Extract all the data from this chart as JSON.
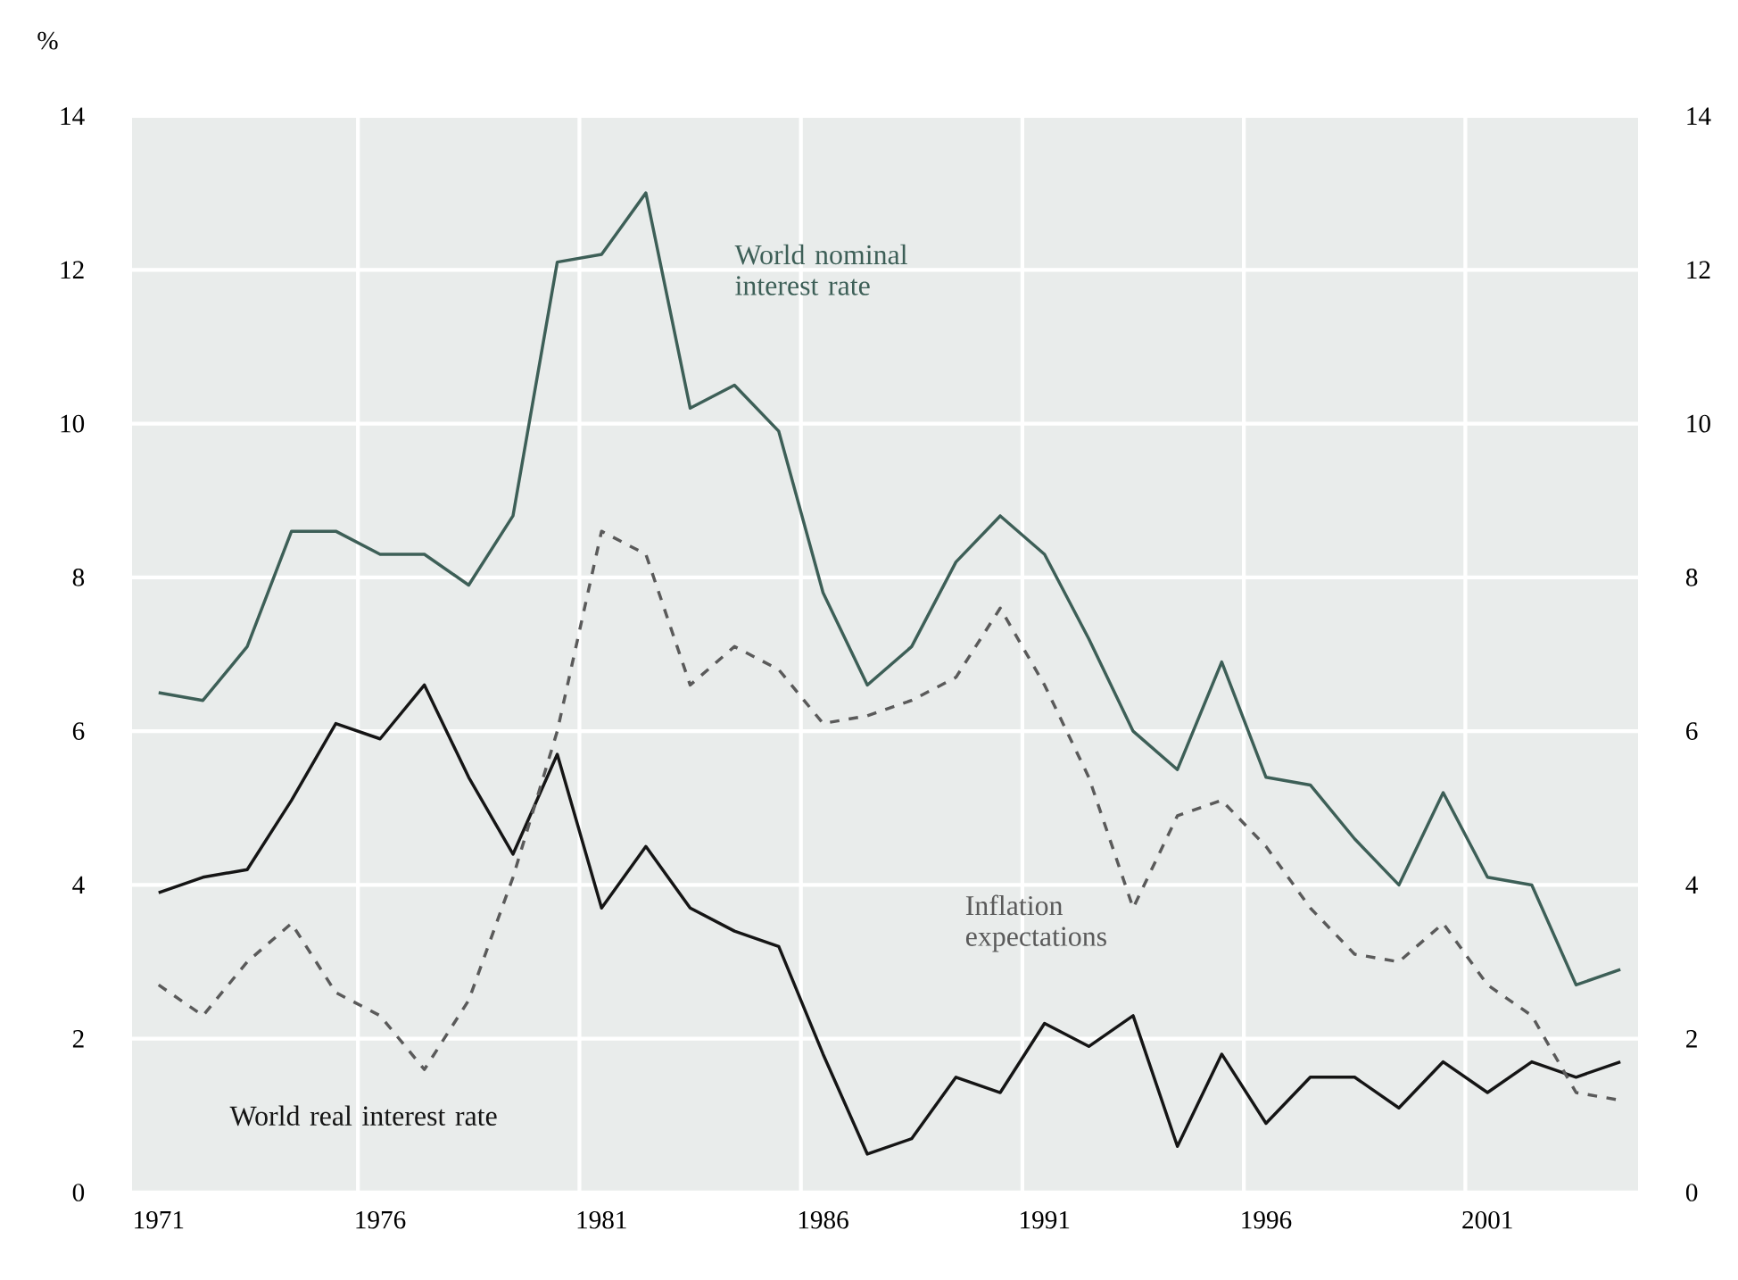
{
  "chart_data": {
    "type": "line",
    "ylabel": "%",
    "x": [
      1971,
      1972,
      1973,
      1974,
      1975,
      1976,
      1977,
      1978,
      1979,
      1980,
      1981,
      1982,
      1983,
      1984,
      1985,
      1986,
      1987,
      1988,
      1989,
      1990,
      1991,
      1992,
      1993,
      1994,
      1995,
      1996,
      1997,
      1998,
      1999,
      2000,
      2001,
      2002,
      2003,
      2004
    ],
    "series": [
      {
        "name": "World nominal interest rate",
        "color": "#3d5f57",
        "values": [
          6.5,
          6.4,
          7.1,
          8.6,
          8.6,
          8.3,
          8.3,
          7.9,
          8.8,
          12.1,
          12.2,
          13.0,
          10.2,
          10.5,
          9.9,
          7.8,
          6.6,
          7.1,
          8.2,
          8.8,
          8.3,
          7.2,
          6.0,
          5.5,
          6.9,
          5.4,
          5.3,
          4.6,
          4.0,
          5.2,
          4.1,
          4.0,
          2.7,
          2.9
        ]
      },
      {
        "name": "World real interest rate",
        "color": "#151515",
        "values": [
          3.9,
          4.1,
          4.2,
          5.1,
          6.1,
          5.9,
          6.6,
          5.4,
          4.4,
          5.7,
          3.7,
          4.5,
          3.7,
          3.4,
          3.2,
          1.8,
          0.5,
          0.7,
          1.5,
          1.3,
          2.2,
          1.9,
          2.3,
          0.6,
          1.8,
          0.9,
          1.5,
          1.5,
          1.1,
          1.7,
          1.3,
          1.7,
          1.5,
          1.7
        ]
      },
      {
        "name": "Inflation expectations",
        "color": "#5a5a5a",
        "line_style": "dashed",
        "values": [
          2.7,
          2.3,
          3.0,
          3.5,
          2.6,
          2.3,
          1.6,
          2.5,
          4.1,
          6.0,
          8.6,
          8.3,
          6.6,
          7.1,
          6.8,
          6.1,
          6.2,
          6.4,
          6.7,
          7.6,
          6.6,
          5.4,
          3.7,
          4.9,
          5.1,
          4.5,
          3.7,
          3.1,
          3.0,
          3.5,
          2.7,
          2.3,
          1.3,
          1.2
        ]
      }
    ],
    "xlim": [
      1970.4,
      2004.4
    ],
    "xticks": [
      1971,
      {
        "value": 1975.5,
        "label": null
      },
      1976,
      {
        "value": 1980.5,
        "label": null
      },
      1981,
      {
        "value": 1985.5,
        "label": null
      },
      1986,
      {
        "value": 1990.5,
        "label": null
      },
      1991,
      {
        "value": 1995.5,
        "label": null
      },
      1996,
      {
        "value": 2000.5,
        "label": null
      },
      2001
    ],
    "ylim": [
      0,
      14
    ],
    "yticks": [
      0,
      2,
      4,
      6,
      8,
      10,
      12,
      14
    ],
    "y2lim": [
      0,
      14
    ],
    "y2ticks": [
      0,
      2,
      4,
      6,
      8,
      10,
      12,
      14
    ],
    "grid": true
  }
}
